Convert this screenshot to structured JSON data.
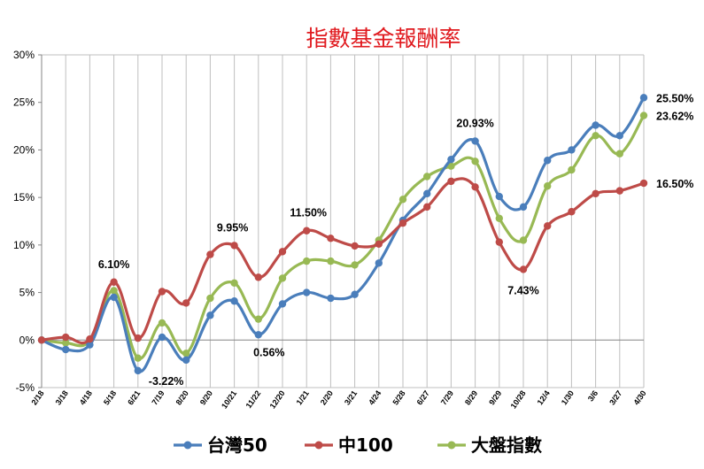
{
  "chart_data": {
    "type": "line",
    "title": "指數基金報酬率",
    "ylim": [
      -5,
      30
    ],
    "yticks": [
      "-5%",
      "0%",
      "5%",
      "10%",
      "15%",
      "20%",
      "25%",
      "30%"
    ],
    "grid": "vertical",
    "legend_position": "bottom",
    "categories": [
      "2/18",
      "3/18",
      "4/18",
      "5/18",
      "6/21",
      "7/19",
      "8/20",
      "9/20",
      "10/21",
      "11/22",
      "12/20",
      "1/21",
      "2/20",
      "3/21",
      "4/24",
      "5/28",
      "6/27",
      "7/29",
      "8/29",
      "9/29",
      "10/28",
      "12/4",
      "1/30",
      "3/6",
      "3/27",
      "4/30"
    ],
    "series": [
      {
        "name": "台灣50",
        "color": "#4a7ebb",
        "values": [
          0,
          -1.0,
          -0.5,
          4.5,
          -3.22,
          0.3,
          -2.1,
          2.6,
          4.1,
          0.56,
          3.8,
          5.0,
          4.4,
          4.8,
          8.1,
          12.6,
          15.4,
          19.0,
          20.93,
          15.1,
          14.0,
          18.9,
          20.0,
          22.6,
          21.5,
          25.5
        ]
      },
      {
        "name": "中100",
        "color": "#be4b48",
        "values": [
          0,
          0.3,
          0.1,
          6.1,
          0.2,
          5.1,
          3.9,
          9.0,
          9.95,
          6.6,
          9.3,
          11.5,
          10.7,
          9.9,
          10.1,
          12.3,
          14.0,
          16.7,
          16.1,
          10.3,
          7.43,
          12.0,
          13.5,
          15.4,
          15.7,
          16.5
        ]
      },
      {
        "name": "大盤指數",
        "color": "#98b954",
        "values": [
          0,
          -0.3,
          -0.1,
          5.2,
          -1.9,
          1.8,
          -1.4,
          4.4,
          6.0,
          2.2,
          6.5,
          8.3,
          8.3,
          7.9,
          10.5,
          14.8,
          17.2,
          18.3,
          18.8,
          12.8,
          10.5,
          16.2,
          17.9,
          21.5,
          19.6,
          23.62
        ]
      }
    ],
    "data_labels": [
      {
        "series": 1,
        "index": 3,
        "text": "6.10%"
      },
      {
        "series": 0,
        "index": 4,
        "text": "-3.22%"
      },
      {
        "series": 1,
        "index": 8,
        "text": "9.95%"
      },
      {
        "series": 0,
        "index": 9,
        "text": "0.56%"
      },
      {
        "series": 1,
        "index": 11,
        "text": "11.50%"
      },
      {
        "series": 0,
        "index": 18,
        "text": "20.93%"
      },
      {
        "series": 1,
        "index": 20,
        "text": "7.43%"
      },
      {
        "series": 0,
        "index": 25,
        "text": "25.50%"
      },
      {
        "series": 2,
        "index": 25,
        "text": "23.62%"
      },
      {
        "series": 1,
        "index": 25,
        "text": "16.50%"
      }
    ]
  }
}
